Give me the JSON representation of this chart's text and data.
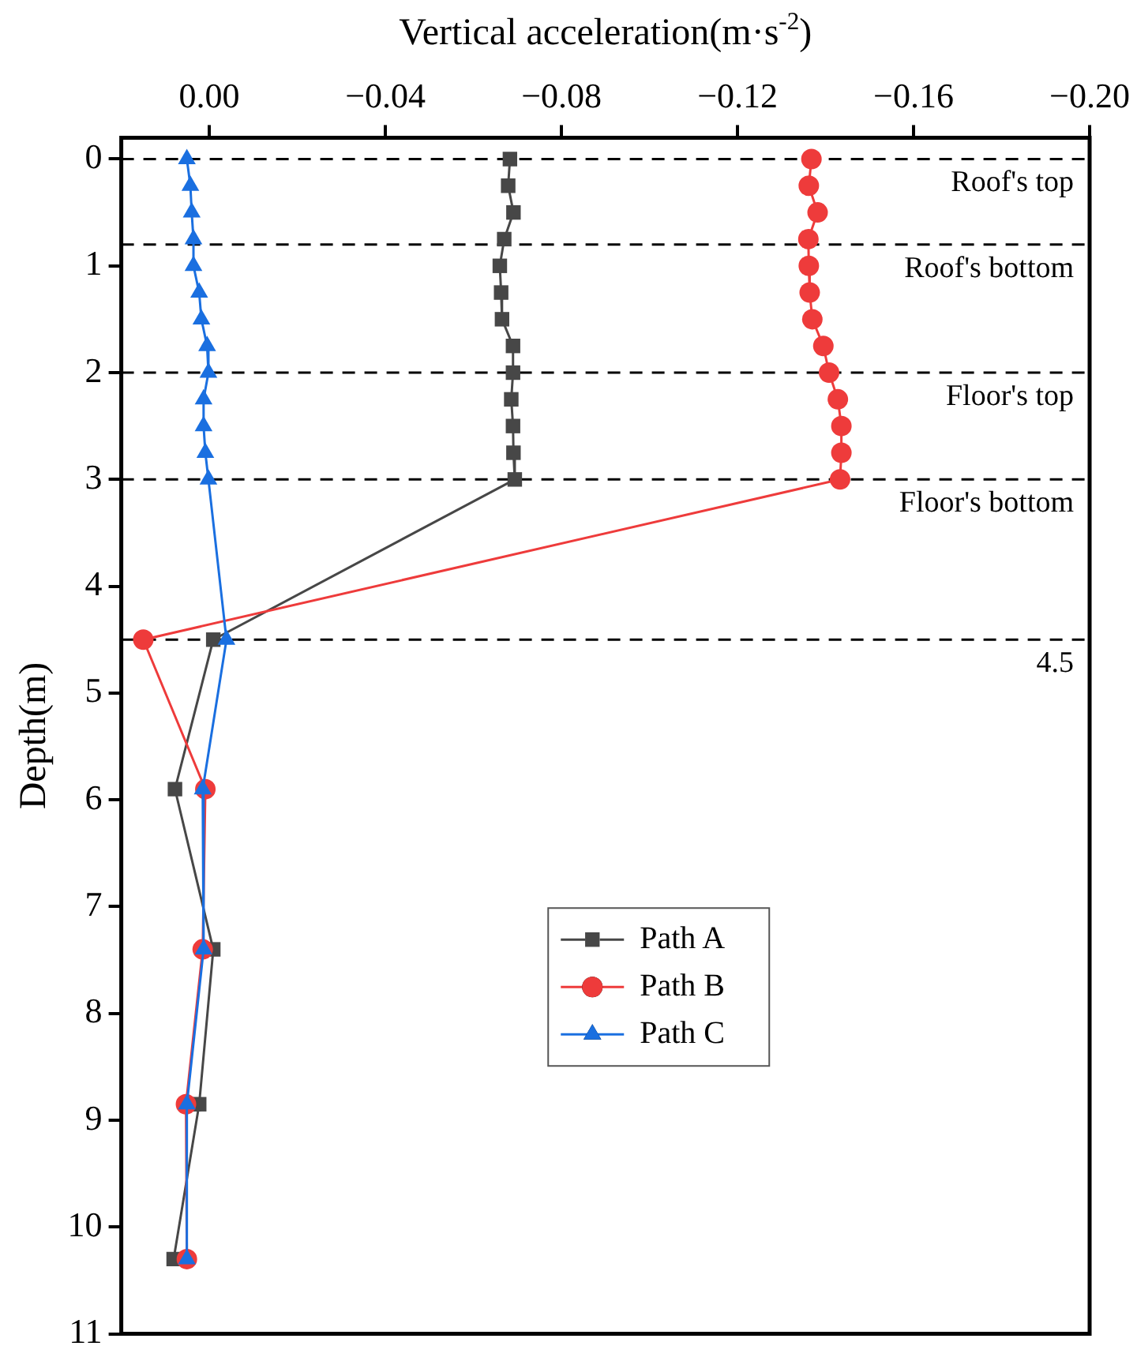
{
  "chart_data": {
    "type": "line",
    "xlabel": "Vertical acceleration(m·s$^{-2}$)",
    "ylabel": "Depth(m)",
    "xlim": [
      0.02,
      -0.2
    ],
    "xticks": [
      {
        "value": 0,
        "label": "0.00"
      },
      {
        "value": -0.04,
        "label": "−0.04"
      },
      {
        "value": -0.08,
        "label": "−0.08"
      },
      {
        "value": -0.12,
        "label": "−0.12"
      },
      {
        "value": -0.16,
        "label": "−0.16"
      },
      {
        "value": -0.2,
        "label": "−0.20"
      }
    ],
    "ylim": [
      11,
      -0.2
    ],
    "yticks": [
      0,
      1,
      2,
      3,
      4,
      5,
      6,
      7,
      8,
      9,
      10,
      11
    ],
    "grid": false,
    "legend": "center",
    "series": [
      {
        "name": "Path A",
        "color": "#474747",
        "marker": "square",
        "x": [
          -0.0683,
          -0.0679,
          -0.0691,
          -0.067,
          -0.066,
          -0.0663,
          -0.0665,
          -0.069,
          -0.069,
          -0.0686,
          -0.069,
          -0.0691,
          -0.0694,
          -0.0009,
          0.0078,
          -0.0009,
          0.0023,
          0.0081
        ],
        "values": [
          0,
          0.25,
          0.5,
          0.75,
          1,
          1.25,
          1.5,
          1.75,
          2,
          2.25,
          2.5,
          2.75,
          3,
          4.5,
          5.9,
          7.4,
          8.85,
          10.3
        ]
      },
      {
        "name": "Path B",
        "color": "#ee3b3b",
        "marker": "circle",
        "x": [
          -0.1368,
          -0.1362,
          -0.1382,
          -0.1361,
          -0.1362,
          -0.1364,
          -0.137,
          -0.1395,
          -0.1408,
          -0.1428,
          -0.1436,
          -0.1436,
          -0.1433,
          0.015,
          0.0009,
          0.0015,
          0.0053,
          0.0051
        ],
        "values": [
          0,
          0.25,
          0.5,
          0.75,
          1,
          1.25,
          1.5,
          1.75,
          2,
          2.25,
          2.5,
          2.75,
          3,
          4.5,
          5.9,
          7.4,
          8.85,
          10.3
        ]
      },
      {
        "name": "Path C",
        "color": "#1a6fe0",
        "marker": "triangle",
        "x": [
          0.0051,
          0.0043,
          0.004,
          0.0036,
          0.0036,
          0.0023,
          0.0018,
          0.0005,
          0.0002,
          0.0013,
          0.0013,
          0.0009,
          0.0002,
          -0.0039,
          0.0015,
          0.0013,
          0.0051,
          0.0051
        ],
        "values": [
          0,
          0.25,
          0.5,
          0.75,
          1,
          1.25,
          1.5,
          1.75,
          2,
          2.25,
          2.5,
          2.75,
          3,
          4.5,
          5.9,
          7.4,
          8.85,
          10.3
        ]
      }
    ],
    "ref_lines": [
      {
        "axis": "y",
        "value": 0,
        "label": "Roof's top",
        "line_style": "dashed",
        "color": "#000000"
      },
      {
        "axis": "y",
        "value": 0.8,
        "label": "Roof's bottom",
        "line_style": "dashed",
        "color": "#000000"
      },
      {
        "axis": "y",
        "value": 2,
        "label": "Floor's top",
        "line_style": "dashed",
        "color": "#000000"
      },
      {
        "axis": "y",
        "value": 3,
        "label": "Floor's bottom",
        "line_style": "dashed",
        "color": "#000000"
      },
      {
        "axis": "y",
        "value": 4.5,
        "label": "4.5",
        "line_style": "dashed",
        "color": "#000000"
      }
    ]
  }
}
